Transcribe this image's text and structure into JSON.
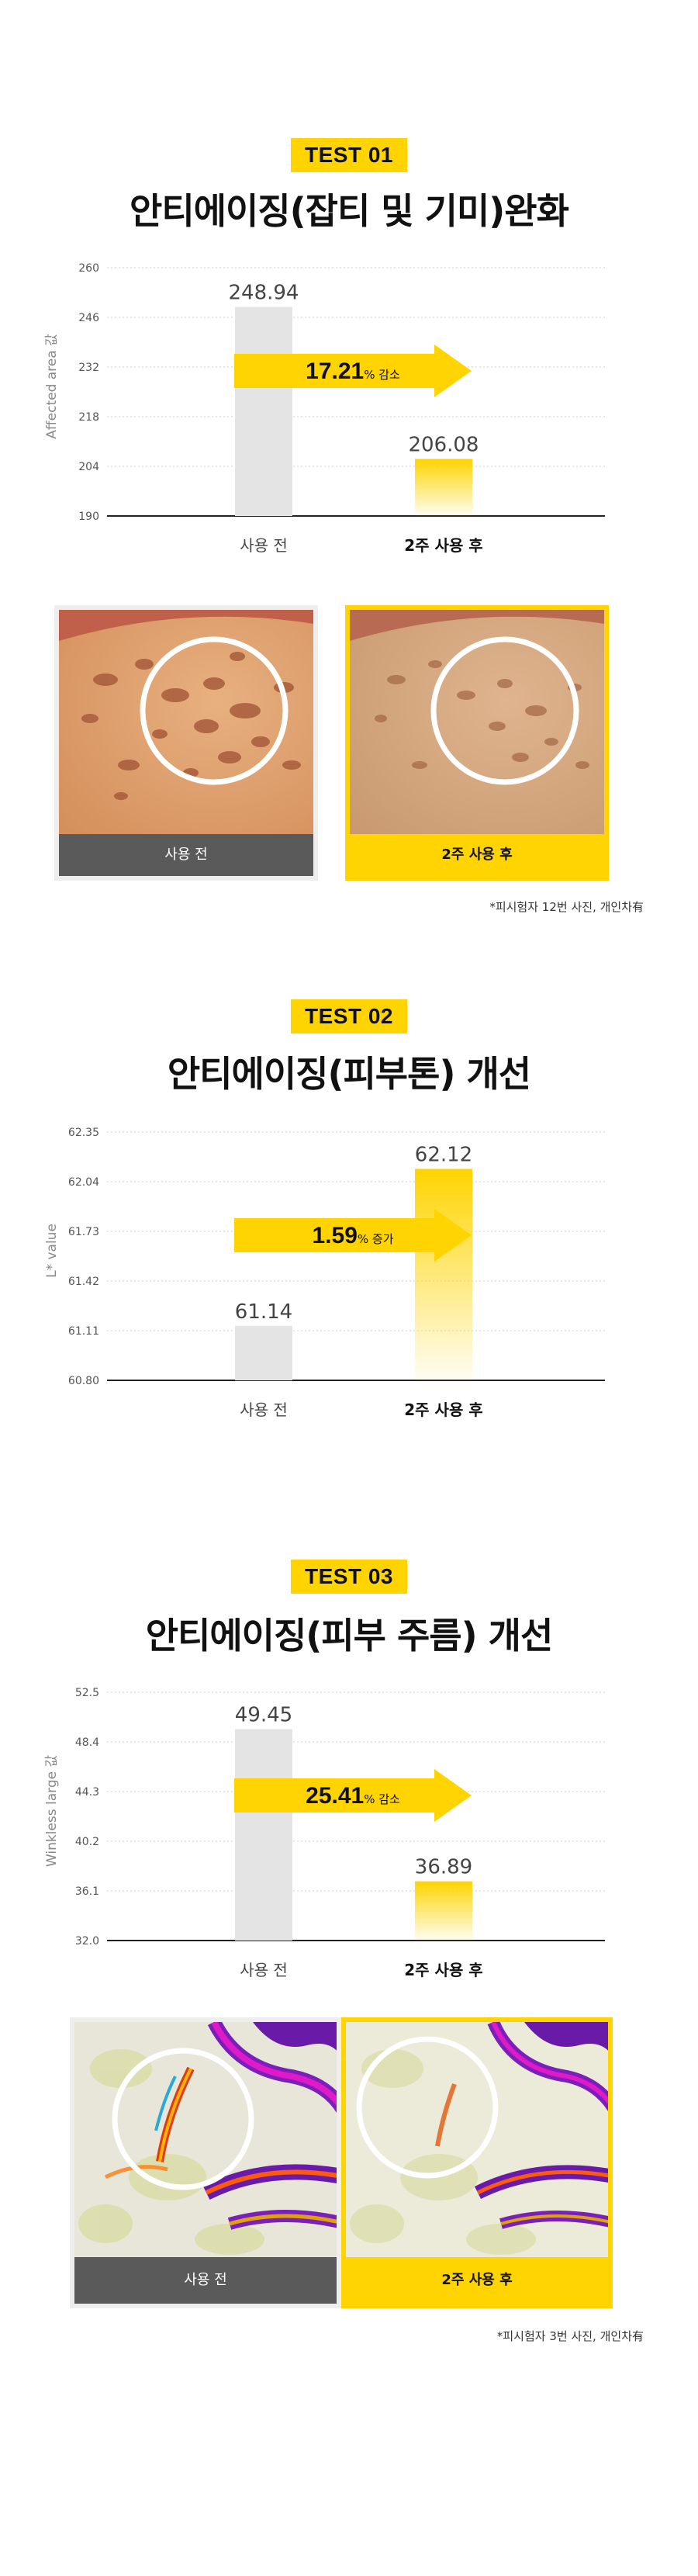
{
  "colors": {
    "accent": "#ffd400",
    "bar_before": "#e4e4e4",
    "bar_after": "#ffd400",
    "dark_caption": "#5a5a5a"
  },
  "sections": [
    {
      "badge": "TEST 01",
      "title": "안티에이징(잡티 및 기미)완화"
    },
    {
      "badge": "TEST 02",
      "title": "안티에이징(피부톤) 개선"
    },
    {
      "badge": "TEST 03",
      "title": "안티에이징(피부 주름) 개선"
    }
  ],
  "chart_data": [
    {
      "type": "bar",
      "ylabel": "Affected area 값",
      "categories": [
        "사용 전",
        "2주 사용 후"
      ],
      "values": [
        248.94,
        206.08
      ],
      "value_labels": [
        "248.94",
        "206.08"
      ],
      "yticks": [
        "260",
        "246",
        "232",
        "218",
        "204",
        "190"
      ],
      "ylim": [
        190,
        260
      ],
      "arrow": {
        "value": "17.21",
        "unit": "%",
        "label": "감소"
      }
    },
    {
      "type": "bar",
      "ylabel": "L* value",
      "categories": [
        "사용 전",
        "2주 사용 후"
      ],
      "values": [
        61.14,
        62.12
      ],
      "value_labels": [
        "61.14",
        "62.12"
      ],
      "yticks": [
        "62.35",
        "62.04",
        "61.73",
        "61.42",
        "61.11",
        "60.80"
      ],
      "ylim": [
        60.8,
        62.35
      ],
      "arrow": {
        "value": "1.59",
        "unit": "%",
        "label": "증가"
      }
    },
    {
      "type": "bar",
      "ylabel": "Winkless large 값",
      "categories": [
        "사용 전",
        "2주 사용 후"
      ],
      "values": [
        49.45,
        36.89
      ],
      "value_labels": [
        "49.45",
        "36.89"
      ],
      "yticks": [
        "52.5",
        "48.4",
        "44.3",
        "40.2",
        "36.1",
        "32.0"
      ],
      "ylim": [
        32.0,
        52.5
      ],
      "arrow": {
        "value": "25.41",
        "unit": "%",
        "label": "감소"
      }
    }
  ],
  "photos": [
    {
      "before_label": "사용 전",
      "after_label": "2주 사용 후",
      "note": "*피시험자 12번 사진, 개인차有"
    },
    {
      "before_label": "사용 전",
      "after_label": "2주 사용 후",
      "note": "*피시험자 3번 사진, 개인차有"
    }
  ]
}
